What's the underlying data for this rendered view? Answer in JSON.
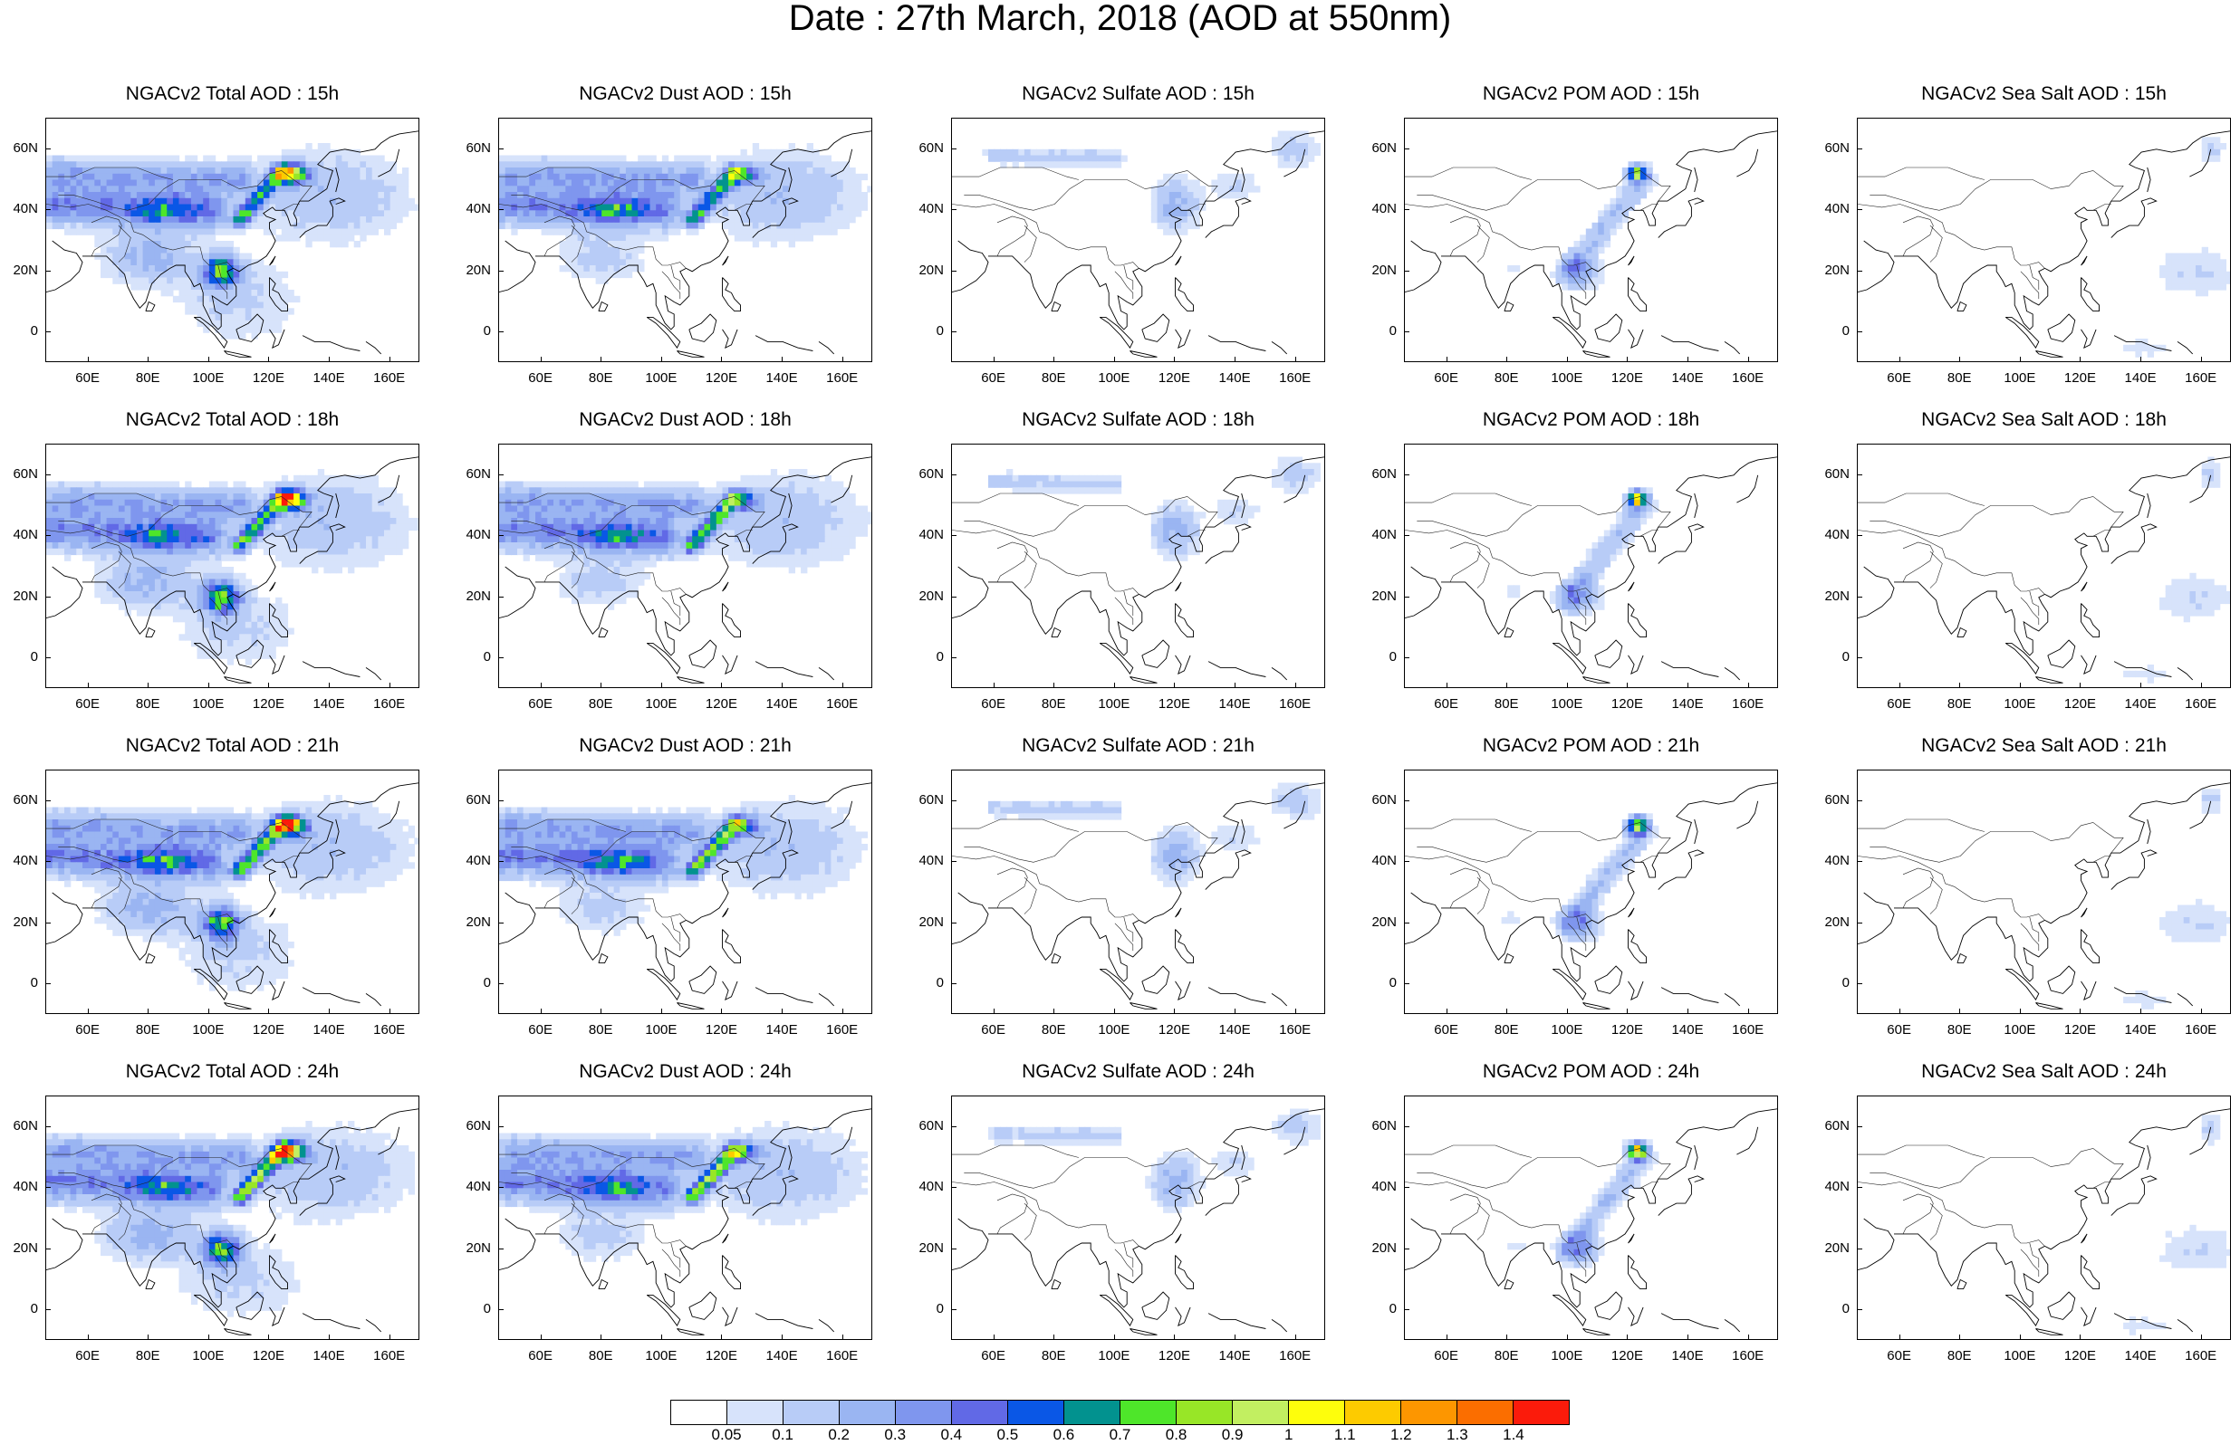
{
  "title": "Date : 27th March, 2018 (AOD at 550nm)",
  "panels": [
    [
      "NGACv2 Total AOD : 15h",
      "NGACv2 Dust AOD : 15h",
      "NGACv2 Sulfate AOD : 15h",
      "NGACv2 POM AOD : 15h",
      "NGACv2 Sea Salt AOD : 15h"
    ],
    [
      "NGACv2 Total AOD : 18h",
      "NGACv2 Dust AOD : 18h",
      "NGACv2 Sulfate AOD : 18h",
      "NGACv2 POM AOD : 18h",
      "NGACv2 Sea Salt AOD : 18h"
    ],
    [
      "NGACv2 Total AOD : 21h",
      "NGACv2 Dust AOD : 21h",
      "NGACv2 Sulfate AOD : 21h",
      "NGACv2 POM AOD : 21h",
      "NGACv2 Sea Salt AOD : 21h"
    ],
    [
      "NGACv2 Total AOD : 24h",
      "NGACv2 Dust AOD : 24h",
      "NGACv2 Sulfate AOD : 24h",
      "NGACv2 POM AOD : 24h",
      "NGACv2 Sea Salt  AOD : 24h"
    ]
  ],
  "lat_ticks": [
    "60N",
    "40N",
    "20N",
    "0"
  ],
  "lon_ticks": [
    "60E",
    "80E",
    "100E",
    "120E",
    "140E",
    "160E"
  ],
  "colorbar": {
    "labels": [
      "0.05",
      "0.1",
      "0.2",
      "0.3",
      "0.4",
      "0.5",
      "0.6",
      "0.7",
      "0.8",
      "0.9",
      "1",
      "1.1",
      "1.2",
      "1.3",
      "1.4"
    ],
    "colors": [
      "#ffffff",
      "#d7e3fb",
      "#b8ccf7",
      "#9ab5f2",
      "#7f96ee",
      "#6169e6",
      "#0a57e6",
      "#02928f",
      "#4ee62a",
      "#98e627",
      "#c2ef61",
      "#fefe0c",
      "#fdcb00",
      "#fd9600",
      "#fb6e00",
      "#fb1b0b"
    ]
  }
}
